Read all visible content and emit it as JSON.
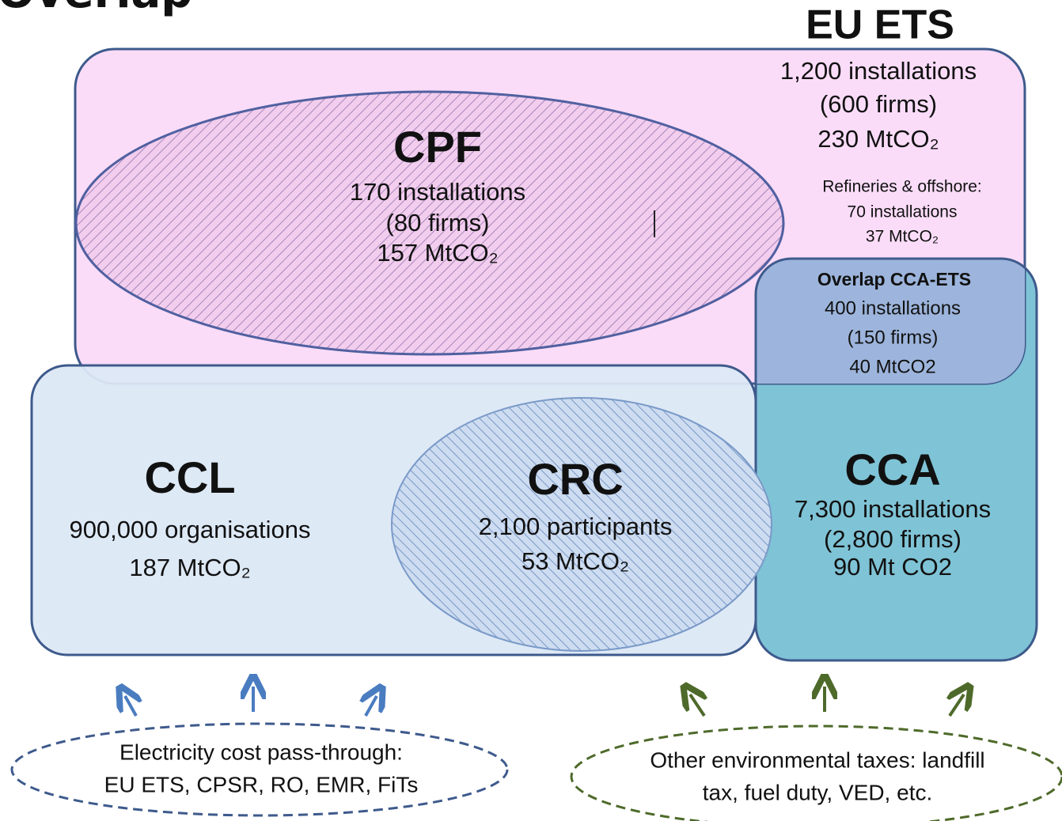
{
  "header": {
    "title": "Overlap"
  },
  "eu_ets": {
    "name": "EU ETS",
    "lines": [
      "1,200 installations",
      "(600 firms)",
      "230 MtCO₂"
    ],
    "refineries": [
      "Refineries & offshore:",
      "70 installations",
      "37 MtCO₂"
    ]
  },
  "cpf": {
    "name": "CPF",
    "lines": [
      "170 installations",
      "(80 firms)",
      "157 MtCO₂"
    ]
  },
  "overlap": {
    "name": "Overlap CCA-ETS",
    "lines": [
      "400 installations",
      "(150 firms)",
      "40 MtCO2"
    ]
  },
  "ccl": {
    "name": "CCL",
    "lines": [
      "900,000 organisations",
      "187 MtCO₂"
    ]
  },
  "crc": {
    "name": "CRC",
    "lines": [
      "2,100 participants",
      "53 MtCO₂"
    ]
  },
  "cca": {
    "name": "CCA",
    "lines": [
      "7,300 installations",
      "(2,800 firms)",
      "90 Mt CO2"
    ]
  },
  "notes": [
    {
      "lines": [
        "Electricity cost pass-through:",
        "EU ETS, CPSR, RO, EMR, FiTs"
      ]
    },
    {
      "lines": [
        "Other environmental taxes: landfill",
        "tax, fuel duty, VED, etc."
      ]
    }
  ]
}
